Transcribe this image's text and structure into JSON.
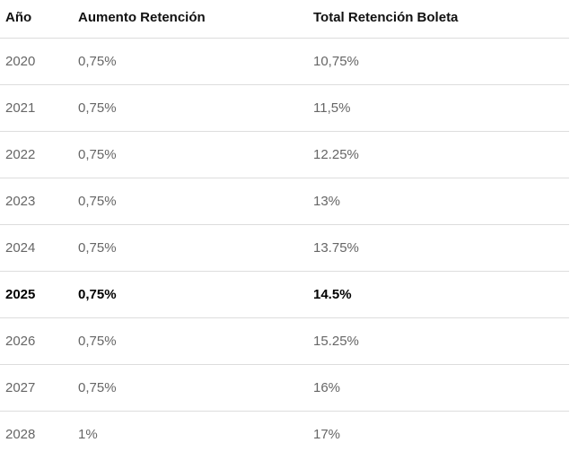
{
  "table": {
    "headers": {
      "year": "Año",
      "increase": "Aumento Retención",
      "total": "Total Retención Boleta"
    },
    "rows": [
      {
        "year": "2020",
        "increase": "0,75%",
        "total": "10,75%",
        "highlight": false
      },
      {
        "year": "2021",
        "increase": "0,75%",
        "total": "11,5%",
        "highlight": false
      },
      {
        "year": "2022",
        "increase": "0,75%",
        "total": "12.25%",
        "highlight": false
      },
      {
        "year": "2023",
        "increase": "0,75%",
        "total": "13%",
        "highlight": false
      },
      {
        "year": "2024",
        "increase": "0,75%",
        "total": "13.75%",
        "highlight": false
      },
      {
        "year": "2025",
        "increase": "0,75%",
        "total": "14.5%",
        "highlight": true
      },
      {
        "year": "2026",
        "increase": "0,75%",
        "total": "15.25%",
        "highlight": false
      },
      {
        "year": "2027",
        "increase": "0,75%",
        "total": "16%",
        "highlight": false
      },
      {
        "year": "2028",
        "increase": "1%",
        "total": "17%",
        "highlight": false
      }
    ]
  },
  "colors": {
    "header_text": "#111111",
    "body_text": "#666666",
    "highlight_text": "#000000",
    "divider": "#dddddd"
  }
}
